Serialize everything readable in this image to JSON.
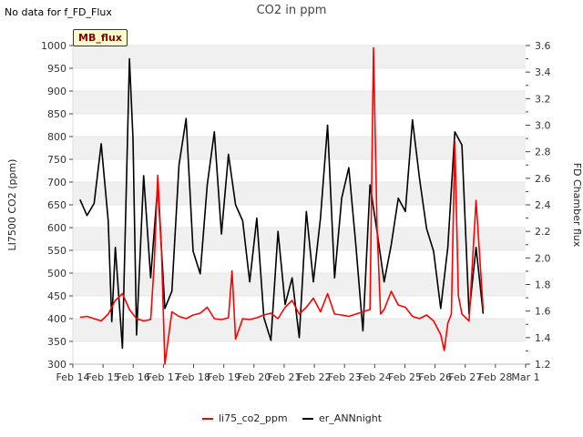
{
  "header": {
    "status": "No data for f_FD_Flux",
    "title": "CO2 in ppm",
    "badge": "MB_flux"
  },
  "colors": {
    "li75": "#ff0000",
    "ann": "#000000",
    "band": "#f0f0f0"
  },
  "chart_data": {
    "type": "line",
    "title": "CO2 in ppm",
    "xlabel": "",
    "ylabel": "LI7500 CO2 (ppm)",
    "y2label": "FD Chamber flux",
    "xlim": [
      "2024-02-14",
      "2024-03-01"
    ],
    "ylim": [
      300,
      1000
    ],
    "y2lim": [
      1.2,
      3.6
    ],
    "x_ticks": [
      "Feb 14",
      "Feb 15",
      "Feb 16",
      "Feb 17",
      "Feb 18",
      "Feb 19",
      "Feb 20",
      "Feb 21",
      "Feb 22",
      "Feb 23",
      "Feb 24",
      "Feb 25",
      "Feb 26",
      "Feb 27",
      "Feb 28",
      "Mar 1"
    ],
    "y_ticks": [
      "300",
      "350",
      "400",
      "450",
      "500",
      "550",
      "600",
      "650",
      "700",
      "750",
      "800",
      "850",
      "900",
      "950",
      "1000"
    ],
    "y2_ticks": [
      "1.2",
      "1.4",
      "1.6",
      "1.8",
      "2.0",
      "2.2",
      "2.4",
      "2.6",
      "2.8",
      "3.0",
      "3.2",
      "3.4",
      "3.6"
    ],
    "legend_position": "bottom-center",
    "grid": "horizontal bands",
    "series": [
      {
        "name": "li75_co2_ppm",
        "axis": "left",
        "x": [
          "2024-02-14T06:00",
          "2024-02-14T12:00",
          "2024-02-14T18:00",
          "2024-02-15T00:00",
          "2024-02-15T06:00",
          "2024-02-15T12:00",
          "2024-02-15T18:00",
          "2024-02-16T00:00",
          "2024-02-16T06:00",
          "2024-02-16T12:00",
          "2024-02-16T18:00",
          "2024-02-16T21:00",
          "2024-02-17T00:00",
          "2024-02-17T03:00",
          "2024-02-17T06:00",
          "2024-02-17T12:00",
          "2024-02-17T18:00",
          "2024-02-18T00:00",
          "2024-02-18T06:00",
          "2024-02-18T12:00",
          "2024-02-18T18:00",
          "2024-02-19T00:00",
          "2024-02-19T06:00",
          "2024-02-19T12:00",
          "2024-02-19T15:00",
          "2024-02-19T18:00",
          "2024-02-20T00:00",
          "2024-02-20T06:00",
          "2024-02-20T12:00",
          "2024-02-20T18:00",
          "2024-02-21T00:00",
          "2024-02-21T06:00",
          "2024-02-21T12:00",
          "2024-02-21T18:00",
          "2024-02-22T00:00",
          "2024-02-22T06:00",
          "2024-02-22T12:00",
          "2024-02-22T18:00",
          "2024-02-23T00:00",
          "2024-02-23T06:00",
          "2024-02-23T12:00",
          "2024-02-23T18:00",
          "2024-02-24T00:00",
          "2024-02-24T06:00",
          "2024-02-24T12:00",
          "2024-02-24T15:00",
          "2024-02-24T18:00",
          "2024-02-24T21:00",
          "2024-02-25T00:00",
          "2024-02-25T06:00",
          "2024-02-25T12:00",
          "2024-02-25T18:00",
          "2024-02-26T00:00",
          "2024-02-26T06:00",
          "2024-02-26T12:00",
          "2024-02-26T18:00",
          "2024-02-27T00:00",
          "2024-02-27T03:00",
          "2024-02-27T06:00",
          "2024-02-27T09:00",
          "2024-02-27T12:00",
          "2024-02-27T15:00",
          "2024-02-27T18:00",
          "2024-02-28T00:00",
          "2024-02-28T06:00",
          "2024-02-28T12:00"
        ],
        "y": [
          403,
          405,
          400,
          395,
          410,
          440,
          455,
          420,
          400,
          395,
          398,
          520,
          715,
          560,
          300,
          415,
          405,
          400,
          408,
          412,
          425,
          400,
          398,
          402,
          505,
          355,
          400,
          398,
          402,
          408,
          412,
          400,
          425,
          440,
          410,
          425,
          445,
          415,
          455,
          410,
          408,
          405,
          410,
          415,
          420,
          995,
          600,
          410,
          420,
          460,
          430,
          425,
          405,
          400,
          408,
          395,
          365,
          330,
          390,
          410,
          790,
          450,
          410,
          395,
          660,
          420
        ]
      },
      {
        "name": "er_ANNnight",
        "axis": "right",
        "x": [
          "2024-02-14T06:00",
          "2024-02-14T12:00",
          "2024-02-14T18:00",
          "2024-02-15T00:00",
          "2024-02-15T06:00",
          "2024-02-15T09:00",
          "2024-02-15T12:00",
          "2024-02-15T18:00",
          "2024-02-16T00:00",
          "2024-02-16T03:00",
          "2024-02-16T06:00",
          "2024-02-16T12:00",
          "2024-02-16T18:00",
          "2024-02-17T00:00",
          "2024-02-17T06:00",
          "2024-02-17T12:00",
          "2024-02-17T18:00",
          "2024-02-18T00:00",
          "2024-02-18T06:00",
          "2024-02-18T12:00",
          "2024-02-18T18:00",
          "2024-02-19T00:00",
          "2024-02-19T06:00",
          "2024-02-19T12:00",
          "2024-02-19T18:00",
          "2024-02-20T00:00",
          "2024-02-20T06:00",
          "2024-02-20T12:00",
          "2024-02-20T18:00",
          "2024-02-21T00:00",
          "2024-02-21T06:00",
          "2024-02-21T12:00",
          "2024-02-21T18:00",
          "2024-02-22T00:00",
          "2024-02-22T06:00",
          "2024-02-22T12:00",
          "2024-02-22T18:00",
          "2024-02-23T00:00",
          "2024-02-23T06:00",
          "2024-02-23T12:00",
          "2024-02-23T18:00",
          "2024-02-24T00:00",
          "2024-02-24T06:00",
          "2024-02-24T12:00",
          "2024-02-24T18:00",
          "2024-02-25T00:00",
          "2024-02-25T06:00",
          "2024-02-25T12:00",
          "2024-02-25T18:00",
          "2024-02-26T00:00",
          "2024-02-26T06:00",
          "2024-02-26T12:00",
          "2024-02-26T18:00",
          "2024-02-27T00:00",
          "2024-02-27T06:00",
          "2024-02-27T12:00",
          "2024-02-27T18:00",
          "2024-02-28T00:00",
          "2024-02-28T06:00",
          "2024-02-28T12:00"
        ],
        "y": [
          2.44,
          2.32,
          2.41,
          2.86,
          2.28,
          1.52,
          2.08,
          1.32,
          3.5,
          2.9,
          1.42,
          2.62,
          1.85,
          2.55,
          1.62,
          1.75,
          2.7,
          3.05,
          2.05,
          1.88,
          2.55,
          2.95,
          2.18,
          2.78,
          2.4,
          2.28,
          1.82,
          2.3,
          1.55,
          1.38,
          2.2,
          1.65,
          1.85,
          1.4,
          2.35,
          1.82,
          2.3,
          3.0,
          1.85,
          2.45,
          2.68,
          2.1,
          1.45,
          2.55,
          2.2,
          1.82,
          2.1,
          2.45,
          2.35,
          3.04,
          2.6,
          2.22,
          2.05,
          1.62,
          2.08,
          2.95,
          2.85,
          1.58,
          2.08,
          1.58
        ]
      }
    ]
  }
}
